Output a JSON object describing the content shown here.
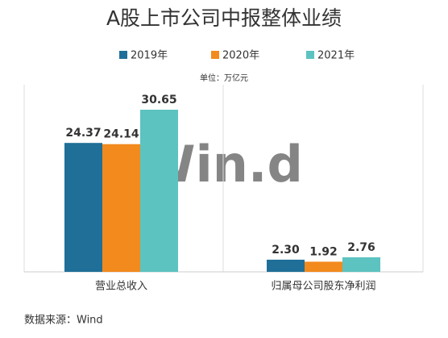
{
  "chart_data": {
    "type": "bar",
    "title": "A股上市公司中报整体业绩",
    "unit": "单位：万亿元",
    "categories": [
      "营业总收入",
      "归属母公司股东净利润"
    ],
    "series": [
      {
        "name": "2019年",
        "color": "#1f6f98",
        "values": [
          24.37,
          2.3
        ],
        "value_labels": [
          "24.37",
          "2.30"
        ]
      },
      {
        "name": "2020年",
        "color": "#f28a1e",
        "values": [
          24.14,
          1.92
        ],
        "value_labels": [
          "24.14",
          "1.92"
        ]
      },
      {
        "name": "2021年",
        "color": "#5cc3c0",
        "values": [
          30.65,
          2.76
        ],
        "value_labels": [
          "30.65",
          "2.76"
        ]
      }
    ],
    "watermark": "Win.d",
    "source": "数据来源：Wind"
  }
}
